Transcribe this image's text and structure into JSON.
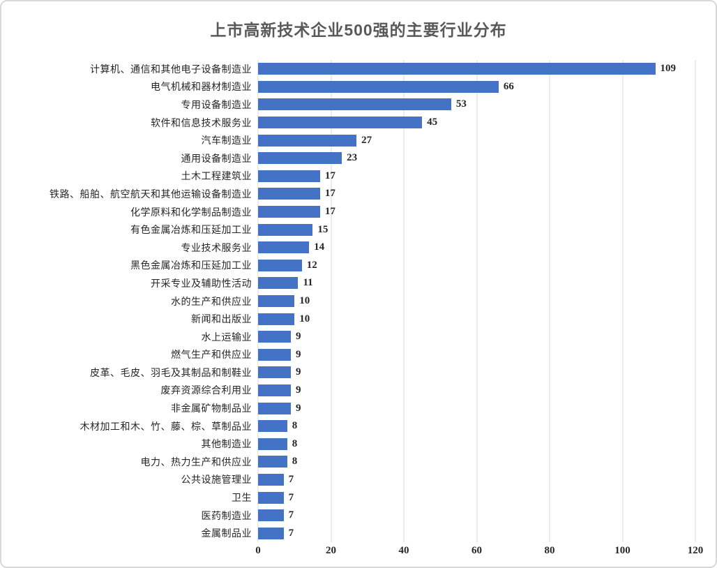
{
  "chart": {
    "colors": {
      "bar": "#4472c4",
      "grid": "#d9d9d9",
      "title_text": "#595959",
      "label_text": "#262626",
      "border": "#d9d9d9"
    }
  },
  "chart_data": {
    "type": "bar",
    "orientation": "horizontal",
    "title": "上市高新技术企业500强的主要行业分布",
    "xlabel": "",
    "ylabel": "",
    "xlim": [
      0,
      120
    ],
    "x_ticks": [
      0,
      20,
      40,
      60,
      80,
      100,
      120
    ],
    "grid": "vertical",
    "legend": "none",
    "data_labels": true,
    "categories": [
      "计算机、通信和其他电子设备制造业",
      "电气机械和器材制造业",
      "专用设备制造业",
      "软件和信息技术服务业",
      "汽车制造业",
      "通用设备制造业",
      "土木工程建筑业",
      "铁路、船舶、航空航天和其他运输设备制造业",
      "化学原料和化学制品制造业",
      "有色金属冶炼和压延加工业",
      "专业技术服务业",
      "黑色金属冶炼和压延加工业",
      "开采专业及辅助性活动",
      "水的生产和供应业",
      "新闻和出版业",
      "水上运输业",
      "燃气生产和供应业",
      "皮革、毛皮、羽毛及其制品和制鞋业",
      "废弃资源综合利用业",
      "非金属矿物制品业",
      "木材加工和木、竹、藤、棕、草制品业",
      "其他制造业",
      "电力、热力生产和供应业",
      "公共设施管理业",
      "卫生",
      "医药制造业",
      "金属制品业"
    ],
    "values": [
      109,
      66,
      53,
      45,
      27,
      23,
      17,
      17,
      17,
      15,
      14,
      12,
      11,
      10,
      10,
      9,
      9,
      9,
      9,
      9,
      8,
      8,
      8,
      7,
      7,
      7,
      7
    ]
  }
}
